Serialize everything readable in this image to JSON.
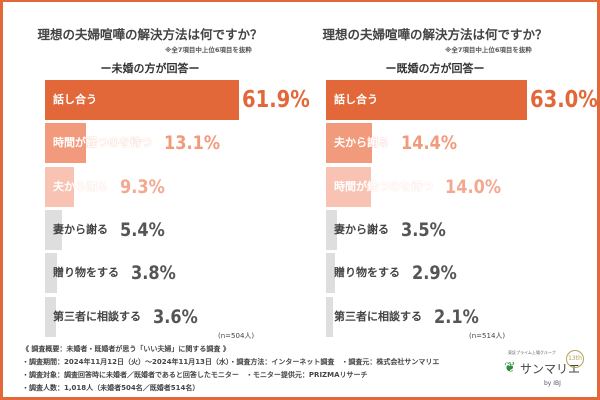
{
  "chart_data": [
    {
      "type": "bar",
      "orientation": "horizontal",
      "title": "理想の夫婦喧嘩の解決方法は何ですか？",
      "note": "※全7項目中上位6項目を抜粋",
      "subtitle": "ー未婚の方が回答ー",
      "sample": "(n=504人)",
      "categories": [
        "話し合う",
        "時間が経つのを待つ",
        "夫から謝る",
        "妻から謝る",
        "贈り物をする",
        "第三者に相談する"
      ],
      "values": [
        61.9,
        13.1,
        9.3,
        5.4,
        3.8,
        3.6
      ],
      "labels": [
        "61.9%",
        "13.1%",
        "9.3%",
        "5.4%",
        "3.8%",
        "3.6%"
      ]
    },
    {
      "type": "bar",
      "orientation": "horizontal",
      "title": "理想の夫婦喧嘩の解決方法は何ですか？",
      "note": "※全7項目中上位6項目を抜粋",
      "subtitle": "ー既婚の方が回答ー",
      "sample": "(n=514人)",
      "categories": [
        "話し合う",
        "夫から謝る",
        "時間が経つのを待つ",
        "妻から謝る",
        "贈り物をする",
        "第三者に相談する"
      ],
      "values": [
        63.0,
        14.4,
        14.0,
        3.5,
        2.9,
        2.1
      ],
      "labels": [
        "63.0%",
        "14.4%",
        "14.0%",
        "3.5%",
        "2.9%",
        "2.1%"
      ]
    }
  ],
  "colors": {
    "rank1": "#e2683a",
    "rank2": "#f29a7c",
    "rank3": "#f8c3b2",
    "other": "#dedede",
    "frame": "#e2683a"
  },
  "footer": {
    "overview": "《 調査概要：未婚者・既婚者が思う「いい夫婦」に関する調査 》",
    "period": "・調査期間：2024年11月12日（火）〜2024年11月13日（水）・調査方法：インターネット調査　・調査元：株式会社サンマリエ",
    "target": "・調査対象：調査回答時に未婚者／既婚者であると回答したモニター　・モニター提供元：PRIZMAリサーチ",
    "count": "・調査人数：1,018人（未婚者504名／既婚者514名）"
  },
  "logo": {
    "tagline": "東証プライム上場グループ",
    "name": "サンマリエ",
    "by": "by IBJ",
    "badge": "13th"
  }
}
